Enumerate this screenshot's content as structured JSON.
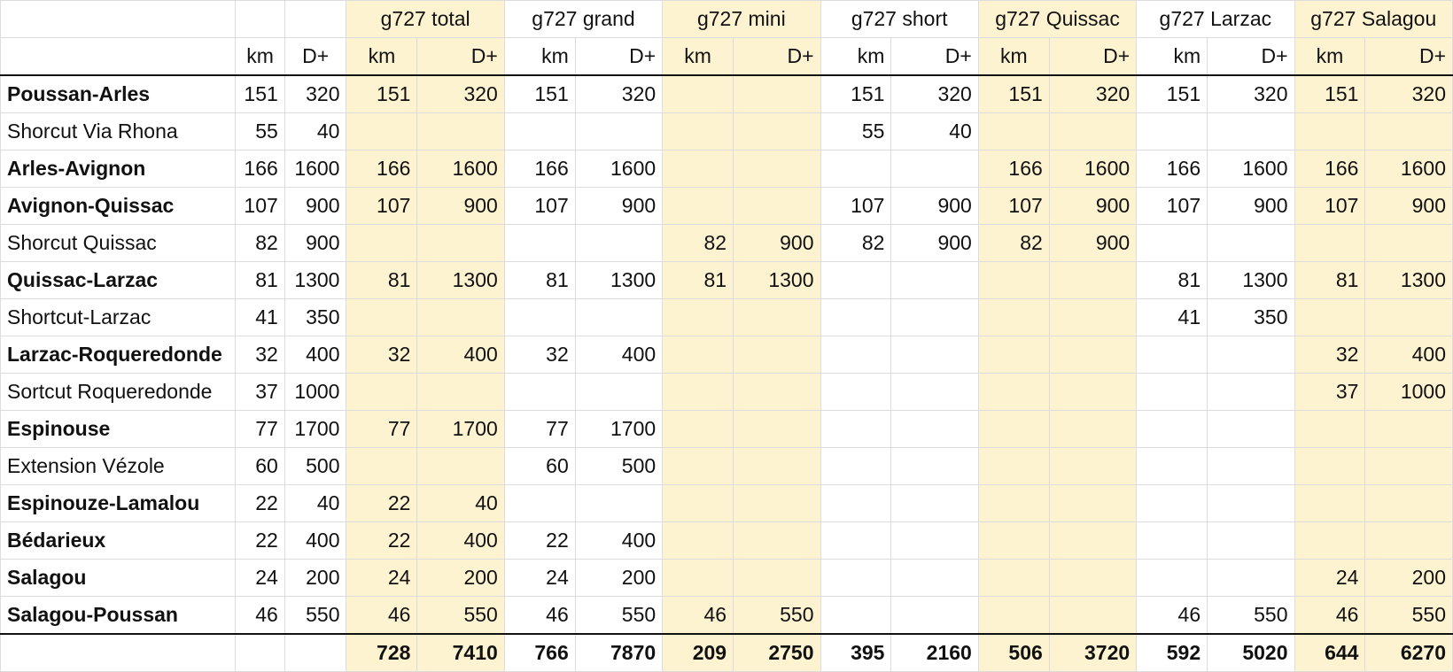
{
  "headers": {
    "groups": [
      "g727 total",
      "g727 grand",
      "g727 mini",
      "g727 short",
      "g727 Quissac",
      "g727 Larzac",
      "g727 Salagou"
    ],
    "km_label": "km",
    "dplus_label": "D+"
  },
  "rows": [
    {
      "name": "Poussan-Arles",
      "bold": true,
      "base_km": "151",
      "base_dp": "320",
      "groups": [
        [
          "151",
          "320"
        ],
        [
          "151",
          "320"
        ],
        [
          "",
          ""
        ],
        [
          "151",
          "320"
        ],
        [
          "151",
          "320"
        ],
        [
          "151",
          "320"
        ],
        [
          "151",
          "320"
        ]
      ]
    },
    {
      "name": "Shorcut Via Rhona",
      "bold": false,
      "base_km": "55",
      "base_dp": "40",
      "groups": [
        [
          "",
          ""
        ],
        [
          "",
          ""
        ],
        [
          "",
          ""
        ],
        [
          "55",
          "40"
        ],
        [
          "",
          ""
        ],
        [
          "",
          ""
        ],
        [
          "",
          ""
        ]
      ]
    },
    {
      "name": "Arles-Avignon",
      "bold": true,
      "base_km": "166",
      "base_dp": "1600",
      "groups": [
        [
          "166",
          "1600"
        ],
        [
          "166",
          "1600"
        ],
        [
          "",
          ""
        ],
        [
          "",
          ""
        ],
        [
          "166",
          "1600"
        ],
        [
          "166",
          "1600"
        ],
        [
          "166",
          "1600"
        ]
      ]
    },
    {
      "name": "Avignon-Quissac",
      "bold": true,
      "base_km": "107",
      "base_dp": "900",
      "groups": [
        [
          "107",
          "900"
        ],
        [
          "107",
          "900"
        ],
        [
          "",
          ""
        ],
        [
          "107",
          "900"
        ],
        [
          "107",
          "900"
        ],
        [
          "107",
          "900"
        ],
        [
          "107",
          "900"
        ]
      ]
    },
    {
      "name": "Shorcut Quissac",
      "bold": false,
      "base_km": "82",
      "base_dp": "900",
      "groups": [
        [
          "",
          ""
        ],
        [
          "",
          ""
        ],
        [
          "82",
          "900"
        ],
        [
          "82",
          "900"
        ],
        [
          "82",
          "900"
        ],
        [
          "",
          ""
        ],
        [
          "",
          ""
        ]
      ]
    },
    {
      "name": "Quissac-Larzac",
      "bold": true,
      "base_km": "81",
      "base_dp": "1300",
      "groups": [
        [
          "81",
          "1300"
        ],
        [
          "81",
          "1300"
        ],
        [
          "81",
          "1300"
        ],
        [
          "",
          ""
        ],
        [
          "",
          ""
        ],
        [
          "81",
          "1300"
        ],
        [
          "81",
          "1300"
        ]
      ]
    },
    {
      "name": "Shortcut-Larzac",
      "bold": false,
      "base_km": "41",
      "base_dp": "350",
      "groups": [
        [
          "",
          ""
        ],
        [
          "",
          ""
        ],
        [
          "",
          ""
        ],
        [
          "",
          ""
        ],
        [
          "",
          ""
        ],
        [
          "41",
          "350"
        ],
        [
          "",
          ""
        ]
      ]
    },
    {
      "name": "Larzac-Roqueredonde",
      "bold": true,
      "base_km": "32",
      "base_dp": "400",
      "groups": [
        [
          "32",
          "400"
        ],
        [
          "32",
          "400"
        ],
        [
          "",
          ""
        ],
        [
          "",
          ""
        ],
        [
          "",
          ""
        ],
        [
          "",
          ""
        ],
        [
          "32",
          "400"
        ]
      ]
    },
    {
      "name": "Sortcut Roqueredonde",
      "bold": false,
      "base_km": "37",
      "base_dp": "1000",
      "groups": [
        [
          "",
          ""
        ],
        [
          "",
          ""
        ],
        [
          "",
          ""
        ],
        [
          "",
          ""
        ],
        [
          "",
          ""
        ],
        [
          "",
          ""
        ],
        [
          "37",
          "1000"
        ]
      ]
    },
    {
      "name": "Espinouse",
      "bold": true,
      "base_km": "77",
      "base_dp": "1700",
      "groups": [
        [
          "77",
          "1700"
        ],
        [
          "77",
          "1700"
        ],
        [
          "",
          ""
        ],
        [
          "",
          ""
        ],
        [
          "",
          ""
        ],
        [
          "",
          ""
        ],
        [
          "",
          ""
        ]
      ]
    },
    {
      "name": "Extension Vézole",
      "bold": false,
      "base_km": "60",
      "base_dp": "500",
      "groups": [
        [
          "",
          ""
        ],
        [
          "60",
          "500"
        ],
        [
          "",
          ""
        ],
        [
          "",
          ""
        ],
        [
          "",
          ""
        ],
        [
          "",
          ""
        ],
        [
          "",
          ""
        ]
      ]
    },
    {
      "name": "Espinouze-Lamalou",
      "bold": true,
      "base_km": "22",
      "base_dp": "40",
      "groups": [
        [
          "22",
          "40"
        ],
        [
          "",
          ""
        ],
        [
          "",
          ""
        ],
        [
          "",
          ""
        ],
        [
          "",
          ""
        ],
        [
          "",
          ""
        ],
        [
          "",
          ""
        ]
      ]
    },
    {
      "name": "Bédarieux",
      "bold": true,
      "base_km": "22",
      "base_dp": "400",
      "groups": [
        [
          "22",
          "400"
        ],
        [
          "22",
          "400"
        ],
        [
          "",
          ""
        ],
        [
          "",
          ""
        ],
        [
          "",
          ""
        ],
        [
          "",
          ""
        ],
        [
          "",
          ""
        ]
      ]
    },
    {
      "name": "Salagou",
      "bold": true,
      "base_km": "24",
      "base_dp": "200",
      "groups": [
        [
          "24",
          "200"
        ],
        [
          "24",
          "200"
        ],
        [
          "",
          ""
        ],
        [
          "",
          ""
        ],
        [
          "",
          ""
        ],
        [
          "",
          ""
        ],
        [
          "24",
          "200"
        ]
      ]
    },
    {
      "name": "Salagou-Poussan",
      "bold": true,
      "base_km": "46",
      "base_dp": "550",
      "groups": [
        [
          "46",
          "550"
        ],
        [
          "46",
          "550"
        ],
        [
          "46",
          "550"
        ],
        [
          "",
          ""
        ],
        [
          "",
          ""
        ],
        [
          "46",
          "550"
        ],
        [
          "46",
          "550"
        ]
      ]
    }
  ],
  "totals": [
    [
      "728",
      "7410"
    ],
    [
      "766",
      "7870"
    ],
    [
      "209",
      "2750"
    ],
    [
      "395",
      "2160"
    ],
    [
      "506",
      "3720"
    ],
    [
      "592",
      "5020"
    ],
    [
      "644",
      "6270"
    ]
  ],
  "highlight_color": "#fdf3d0"
}
